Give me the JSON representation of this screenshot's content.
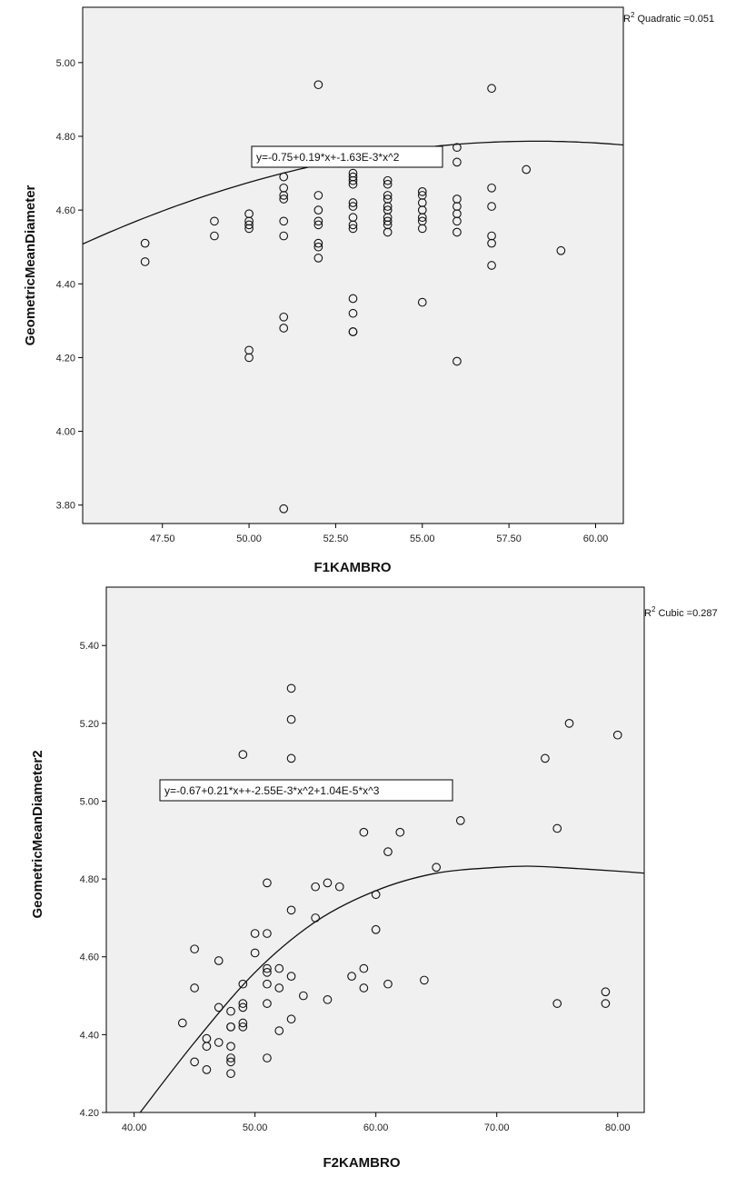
{
  "chart_data": [
    {
      "type": "scatter",
      "xlabel": "F1KAMBRO",
      "ylabel": "GeometricMeanDiameter",
      "xlim": [
        45.2,
        60.8
      ],
      "ylim": [
        3.75,
        5.15
      ],
      "x_ticks": [
        "47.50",
        "50.00",
        "52.50",
        "55.00",
        "57.50",
        "60.00"
      ],
      "y_ticks": [
        "3.80",
        "4.00",
        "4.20",
        "4.40",
        "4.60",
        "4.80",
        "5.00"
      ],
      "r2_label": "R",
      "r2_sup": "2",
      "r2_text": " Quadratic =0.051",
      "equation": "y=-0.75+0.19*x+-1.63E-3*x^2",
      "fit": {
        "type": "quadratic",
        "coefficients": [
          -0.75,
          0.19,
          -0.00163
        ]
      },
      "points": [
        [
          47,
          4.51
        ],
        [
          47,
          4.46
        ],
        [
          49,
          4.57
        ],
        [
          49,
          4.53
        ],
        [
          50,
          4.59
        ],
        [
          50,
          4.57
        ],
        [
          50,
          4.55
        ],
        [
          50,
          4.56
        ],
        [
          50,
          4.22
        ],
        [
          50,
          4.2
        ],
        [
          51,
          4.69
        ],
        [
          51,
          4.66
        ],
        [
          51,
          4.64
        ],
        [
          51,
          4.63
        ],
        [
          51,
          4.57
        ],
        [
          51,
          4.53
        ],
        [
          51,
          4.31
        ],
        [
          51,
          4.28
        ],
        [
          51,
          3.79
        ],
        [
          52,
          4.94
        ],
        [
          52,
          4.64
        ],
        [
          52,
          4.6
        ],
        [
          52,
          4.57
        ],
        [
          52,
          4.56
        ],
        [
          52,
          4.51
        ],
        [
          52,
          4.5
        ],
        [
          52,
          4.47
        ],
        [
          53,
          4.7
        ],
        [
          53,
          4.69
        ],
        [
          53,
          4.68
        ],
        [
          53,
          4.67
        ],
        [
          53,
          4.62
        ],
        [
          53,
          4.61
        ],
        [
          53,
          4.58
        ],
        [
          53,
          4.56
        ],
        [
          53,
          4.55
        ],
        [
          53,
          4.36
        ],
        [
          53,
          4.32
        ],
        [
          53,
          4.27
        ],
        [
          53,
          4.27
        ],
        [
          54,
          4.68
        ],
        [
          54,
          4.67
        ],
        [
          54,
          4.64
        ],
        [
          54,
          4.63
        ],
        [
          54,
          4.61
        ],
        [
          54,
          4.6
        ],
        [
          54,
          4.58
        ],
        [
          54,
          4.57
        ],
        [
          54,
          4.56
        ],
        [
          54,
          4.54
        ],
        [
          55,
          4.65
        ],
        [
          55,
          4.64
        ],
        [
          55,
          4.62
        ],
        [
          55,
          4.6
        ],
        [
          55,
          4.58
        ],
        [
          55,
          4.57
        ],
        [
          55,
          4.55
        ],
        [
          55,
          4.35
        ],
        [
          56,
          4.77
        ],
        [
          56,
          4.73
        ],
        [
          56,
          4.63
        ],
        [
          56,
          4.61
        ],
        [
          56,
          4.59
        ],
        [
          56,
          4.57
        ],
        [
          56,
          4.54
        ],
        [
          56,
          4.19
        ],
        [
          57,
          4.93
        ],
        [
          57,
          4.66
        ],
        [
          57,
          4.61
        ],
        [
          57,
          4.53
        ],
        [
          57,
          4.51
        ],
        [
          57,
          4.45
        ],
        [
          58,
          4.71
        ],
        [
          59,
          4.49
        ]
      ]
    },
    {
      "type": "scatter",
      "xlabel": "F2KAMBRO",
      "ylabel": "GeometricMeanDiameter2",
      "xlim": [
        37.7,
        82.2
      ],
      "ylim": [
        4.2,
        5.55
      ],
      "x_ticks": [
        "40.00",
        "50.00",
        "60.00",
        "70.00",
        "80.00"
      ],
      "y_ticks": [
        "4.20",
        "4.40",
        "4.60",
        "4.80",
        "5.00",
        "5.20",
        "5.40"
      ],
      "r2_label": "R",
      "r2_sup": "2",
      "r2_text": " Cubic =0.287",
      "equation": "y=-0.67+0.21*x++-2.55E-3*x^2+1.04E-5*x^3",
      "fit": {
        "type": "curve",
        "x": [
          40.5,
          45,
          50,
          55,
          60,
          65,
          70,
          72.5,
          75,
          80,
          82.2
        ],
        "y": [
          4.2,
          4.38,
          4.56,
          4.69,
          4.77,
          4.815,
          4.83,
          4.833,
          4.83,
          4.82,
          4.815
        ]
      },
      "points": [
        [
          44,
          4.43
        ],
        [
          45,
          4.62
        ],
        [
          45,
          4.52
        ],
        [
          45,
          4.33
        ],
        [
          46,
          4.39
        ],
        [
          46,
          4.37
        ],
        [
          46,
          4.31
        ],
        [
          47,
          4.59
        ],
        [
          47,
          4.47
        ],
        [
          47,
          4.38
        ],
        [
          48,
          4.46
        ],
        [
          48,
          4.42
        ],
        [
          48,
          4.42
        ],
        [
          48,
          4.37
        ],
        [
          48,
          4.34
        ],
        [
          48,
          4.33
        ],
        [
          48,
          4.3
        ],
        [
          49,
          5.12
        ],
        [
          49,
          4.53
        ],
        [
          49,
          4.48
        ],
        [
          49,
          4.47
        ],
        [
          49,
          4.43
        ],
        [
          49,
          4.42
        ],
        [
          50,
          4.66
        ],
        [
          50,
          4.61
        ],
        [
          51,
          4.79
        ],
        [
          51,
          4.66
        ],
        [
          51,
          4.57
        ],
        [
          51,
          4.56
        ],
        [
          51,
          4.53
        ],
        [
          51,
          4.48
        ],
        [
          51,
          4.34
        ],
        [
          52,
          4.57
        ],
        [
          52,
          4.52
        ],
        [
          52,
          4.41
        ],
        [
          53,
          5.29
        ],
        [
          53,
          5.21
        ],
        [
          53,
          5.11
        ],
        [
          53,
          4.72
        ],
        [
          53,
          4.55
        ],
        [
          53,
          4.44
        ],
        [
          54,
          4.5
        ],
        [
          55,
          4.78
        ],
        [
          55,
          4.7
        ],
        [
          56,
          4.79
        ],
        [
          56,
          4.49
        ],
        [
          57,
          4.78
        ],
        [
          58,
          4.55
        ],
        [
          59,
          4.92
        ],
        [
          59,
          4.57
        ],
        [
          59,
          4.52
        ],
        [
          60,
          4.76
        ],
        [
          60,
          4.67
        ],
        [
          61,
          4.87
        ],
        [
          61,
          4.53
        ],
        [
          62,
          4.92
        ],
        [
          64,
          4.54
        ],
        [
          65,
          4.83
        ],
        [
          67,
          4.95
        ],
        [
          74,
          5.11
        ],
        [
          75,
          4.93
        ],
        [
          75,
          4.48
        ],
        [
          76,
          5.2
        ],
        [
          79,
          4.51
        ],
        [
          79,
          4.48
        ],
        [
          80,
          5.17
        ]
      ]
    }
  ]
}
